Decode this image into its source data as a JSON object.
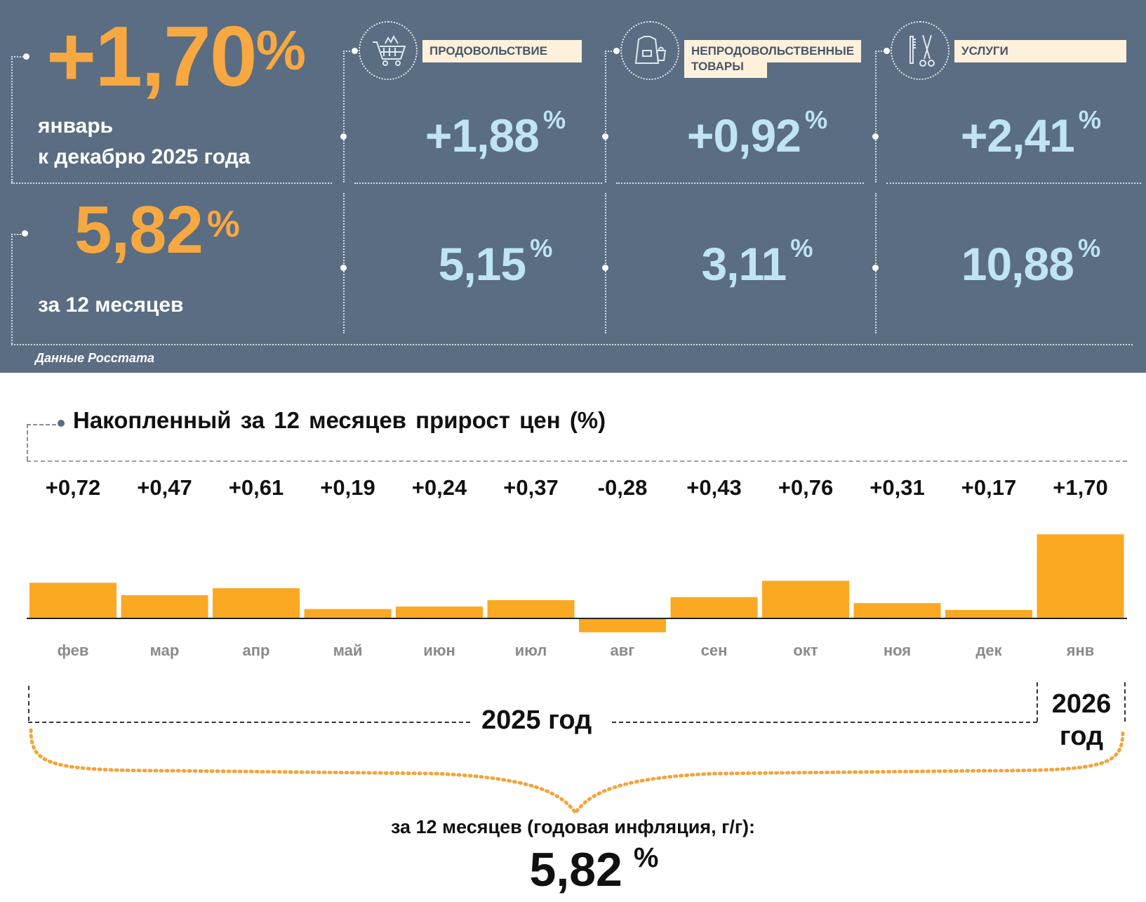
{
  "headline": {
    "value": "+1,70",
    "unit": "%",
    "line1": "январь",
    "line2": "к декабрю 2025 года"
  },
  "annual": {
    "value": "5,82",
    "unit": "%",
    "label": "за 12 месяцев"
  },
  "categories": [
    {
      "label": "ПРОДОВОЛЬСТВИЕ",
      "icon": "shopping-cart-icon",
      "month": "+1,88",
      "year": "5,15"
    },
    {
      "label": "НЕПРОДОВОЛЬСТВЕННЫЕ",
      "label2": "ТОВАРЫ",
      "icon": "clothing-bag-icon",
      "month": "+0,92",
      "year": "3,11"
    },
    {
      "label": "УСЛУГИ",
      "icon": "comb-scissors-icon",
      "month": "+2,41",
      "year": "10,88"
    }
  ],
  "unit": "%",
  "source": "Данные Росстата",
  "chart_data": {
    "type": "bar",
    "title": "Накопленный за 12 месяцев прирост цен (%)",
    "categories": [
      "фев",
      "мар",
      "апр",
      "май",
      "июн",
      "июл",
      "авг",
      "сен",
      "окт",
      "ноя",
      "дек",
      "янв"
    ],
    "labels": [
      "+0,72",
      "+0,47",
      "+0,61",
      "+0,19",
      "+0,24",
      "+0,37",
      "-0,28",
      "+0,43",
      "+0,76",
      "+0,31",
      "+0,17",
      "+1,70"
    ],
    "values": [
      0.72,
      0.47,
      0.61,
      0.19,
      0.24,
      0.37,
      -0.28,
      0.43,
      0.76,
      0.31,
      0.17,
      1.7
    ],
    "year_2025": "2025 год",
    "year_2026_line1": "2026",
    "year_2026_line2": "год",
    "summary_label": "за 12 месяцев (годовая инфляция, г/г):",
    "summary_value": "5,82",
    "summary_unit": "%",
    "bar_color": "#fba823"
  }
}
